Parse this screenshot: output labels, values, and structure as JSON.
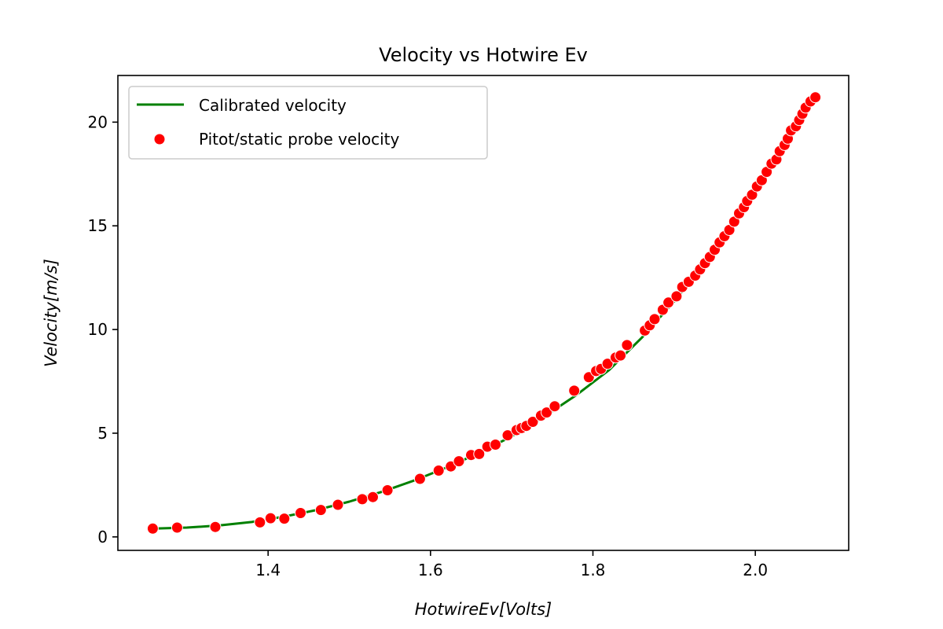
{
  "chart_data": {
    "type": "scatter",
    "title": "Velocity vs Hotwire Ev",
    "xlabel": "HotwireEv[Volts]",
    "ylabel": "Velocity[m/s]",
    "xlim": [
      1.215,
      2.115
    ],
    "ylim": [
      -0.65,
      22.25
    ],
    "xticks": [
      1.4,
      1.6,
      1.8,
      2.0
    ],
    "xtick_labels": [
      "1.4",
      "1.6",
      "1.8",
      "2.0"
    ],
    "yticks": [
      0,
      5,
      10,
      15,
      20
    ],
    "ytick_labels": [
      "0",
      "5",
      "10",
      "15",
      "20"
    ],
    "grid": false,
    "legend_position": "top-left",
    "series": [
      {
        "name": "Calibrated velocity",
        "kind": "line",
        "color": "#008000",
        "x": [
          1.26,
          1.3,
          1.34,
          1.38,
          1.42,
          1.46,
          1.5,
          1.54,
          1.58,
          1.62,
          1.66,
          1.7,
          1.74,
          1.78,
          1.82,
          1.86,
          1.9,
          1.94,
          1.98,
          2.02,
          2.06,
          2.075
        ],
        "y": [
          0.4,
          0.45,
          0.55,
          0.72,
          0.98,
          1.3,
          1.7,
          2.17,
          2.72,
          3.35,
          4.05,
          4.85,
          5.8,
          6.85,
          8.05,
          9.6,
          11.35,
          13.3,
          15.65,
          18.05,
          20.35,
          21.2
        ]
      },
      {
        "name": "Pitot/static probe velocity",
        "kind": "scatter",
        "color": "#ff0000",
        "x": [
          1.258,
          1.288,
          1.335,
          1.39,
          1.403,
          1.42,
          1.44,
          1.465,
          1.486,
          1.516,
          1.529,
          1.547,
          1.587,
          1.61,
          1.625,
          1.635,
          1.65,
          1.66,
          1.67,
          1.68,
          1.695,
          1.706,
          1.712,
          1.718,
          1.726,
          1.736,
          1.743,
          1.753,
          1.777,
          1.795,
          1.804,
          1.81,
          1.818,
          1.828,
          1.834,
          1.842,
          1.864,
          1.87,
          1.876,
          1.886,
          1.893,
          1.903,
          1.91,
          1.918,
          1.926,
          1.932,
          1.938,
          1.944,
          1.95,
          1.956,
          1.962,
          1.968,
          1.974,
          1.98,
          1.986,
          1.99,
          1.996,
          2.002,
          2.008,
          2.014,
          2.02,
          2.026,
          2.03,
          2.036,
          2.04,
          2.044,
          2.05,
          2.054,
          2.058,
          2.062,
          2.068,
          2.074
        ],
        "y": [
          0.4,
          0.45,
          0.48,
          0.7,
          0.9,
          0.88,
          1.15,
          1.3,
          1.55,
          1.82,
          1.92,
          2.25,
          2.8,
          3.2,
          3.4,
          3.65,
          3.95,
          4.0,
          4.35,
          4.45,
          4.9,
          5.15,
          5.25,
          5.35,
          5.55,
          5.85,
          6.0,
          6.3,
          7.05,
          7.7,
          8.0,
          8.1,
          8.35,
          8.65,
          8.75,
          9.25,
          9.95,
          10.2,
          10.5,
          10.95,
          11.3,
          11.6,
          12.05,
          12.3,
          12.6,
          12.9,
          13.2,
          13.5,
          13.85,
          14.2,
          14.5,
          14.8,
          15.2,
          15.6,
          15.9,
          16.2,
          16.5,
          16.9,
          17.2,
          17.6,
          18.0,
          18.2,
          18.6,
          18.9,
          19.2,
          19.6,
          19.8,
          20.1,
          20.4,
          20.7,
          21.0,
          21.2
        ]
      }
    ]
  }
}
